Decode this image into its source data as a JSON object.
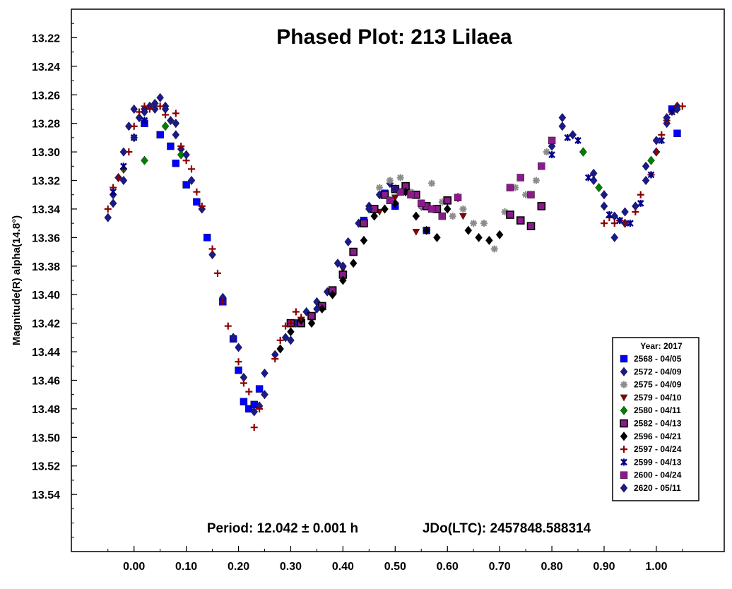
{
  "chart_data": {
    "type": "scatter",
    "title": "Phased Plot: 213 Lilaea",
    "ylabel": "Magnitude(R) alpha(14.8°)",
    "xlabel": "",
    "xlim": [
      -0.12,
      1.13
    ],
    "ylim": [
      13.2,
      13.58
    ],
    "y_inverted": true,
    "x_ticks": [
      "0.00",
      "0.10",
      "0.20",
      "0.30",
      "0.40",
      "0.50",
      "0.60",
      "0.70",
      "0.80",
      "0.90",
      "1.00"
    ],
    "y_ticks": [
      "13.22",
      "13.24",
      "13.26",
      "13.28",
      "13.30",
      "13.32",
      "13.34",
      "13.36",
      "13.38",
      "13.40",
      "13.42",
      "13.44",
      "13.46",
      "13.48",
      "13.50",
      "13.52",
      "13.54"
    ],
    "footer": {
      "period": "Period: 12.042 ± 0.001 h",
      "epoch": "JDo(LTC): 2457848.588314"
    },
    "legend": {
      "title": "Year: 2017",
      "placement": "bottom-right"
    },
    "series": [
      {
        "name": "2568 - 04/05",
        "marker": "square",
        "color": "#0000ff",
        "x": [
          0.02,
          0.05,
          0.07,
          0.08,
          0.1,
          0.12,
          0.14,
          0.17,
          0.19,
          0.2,
          0.21,
          0.22,
          0.23,
          0.24,
          0.44,
          0.48,
          0.5,
          0.56,
          1.03,
          1.04
        ],
        "y": [
          13.28,
          13.288,
          13.296,
          13.308,
          13.323,
          13.335,
          13.36,
          13.405,
          13.431,
          13.453,
          13.475,
          13.48,
          13.477,
          13.466,
          13.348,
          13.329,
          13.338,
          13.355,
          13.27,
          13.287
        ]
      },
      {
        "name": "2572 - 04/09",
        "marker": "diamond",
        "color": "#1a1a8c",
        "x": [
          -0.05,
          -0.04,
          -0.03,
          -0.02,
          -0.01,
          0.0,
          0.01,
          0.02,
          0.03,
          0.04,
          0.05,
          0.06,
          0.07,
          0.08,
          0.09,
          0.11,
          0.13,
          0.15,
          0.17,
          0.19,
          0.2,
          0.21,
          0.23,
          0.24,
          0.25,
          0.27,
          0.29,
          0.31,
          0.33,
          0.35,
          0.37,
          0.39,
          0.41,
          0.43,
          0.45,
          0.47,
          0.49,
          0.52,
          0.55,
          0.8,
          0.82,
          0.84,
          0.86,
          0.88,
          0.9,
          0.92,
          0.94,
          0.96,
          0.98,
          1.0,
          1.02,
          1.04
        ],
        "y": [
          13.346,
          13.33,
          13.318,
          13.3,
          13.282,
          13.27,
          13.276,
          13.27,
          13.268,
          13.27,
          13.262,
          13.268,
          13.278,
          13.288,
          13.298,
          13.32,
          13.34,
          13.372,
          13.402,
          13.43,
          13.437,
          13.458,
          13.482,
          13.478,
          13.455,
          13.442,
          13.43,
          13.42,
          13.412,
          13.405,
          13.398,
          13.378,
          13.363,
          13.35,
          13.338,
          13.33,
          13.322,
          13.325,
          13.338,
          13.296,
          13.276,
          13.288,
          13.3,
          13.32,
          13.338,
          13.36,
          13.35,
          13.338,
          13.32,
          13.3,
          13.28,
          13.268
        ]
      },
      {
        "name": "2575 - 04/09",
        "marker": "asterisk",
        "color": "#8c8c8c",
        "x": [
          0.47,
          0.49,
          0.51,
          0.53,
          0.55,
          0.57,
          0.59,
          0.61,
          0.63,
          0.65,
          0.67,
          0.69,
          0.71,
          0.73,
          0.75,
          0.77,
          0.79
        ],
        "y": [
          13.325,
          13.32,
          13.318,
          13.328,
          13.338,
          13.322,
          13.335,
          13.345,
          13.34,
          13.35,
          13.35,
          13.368,
          13.342,
          13.325,
          13.33,
          13.32,
          13.3
        ]
      },
      {
        "name": "2579 - 04/10",
        "marker": "triangle-down",
        "color": "#8b0000",
        "x": [
          0.32,
          0.36,
          0.4,
          0.47,
          0.5,
          0.54,
          0.6,
          0.63
        ],
        "y": [
          13.418,
          13.408,
          13.382,
          13.342,
          13.332,
          13.356,
          13.335,
          13.345
        ]
      },
      {
        "name": "2580 - 04/11",
        "marker": "diamond",
        "color": "#008000",
        "x": [
          -0.02,
          0.02,
          0.06,
          0.09,
          0.86,
          0.89,
          0.99
        ],
        "y": [
          13.312,
          13.306,
          13.282,
          13.302,
          13.3,
          13.325,
          13.306
        ]
      },
      {
        "name": "2582 - 04/13",
        "marker": "square-bordered",
        "color": "#8b1a8b",
        "x": [
          0.3,
          0.32,
          0.34,
          0.36,
          0.38,
          0.4,
          0.42,
          0.44,
          0.46,
          0.48,
          0.5,
          0.52,
          0.54,
          0.56,
          0.58,
          0.6,
          0.72,
          0.74,
          0.76,
          0.78
        ],
        "y": [
          13.42,
          13.42,
          13.415,
          13.408,
          13.397,
          13.386,
          13.37,
          13.35,
          13.34,
          13.33,
          13.326,
          13.324,
          13.33,
          13.338,
          13.34,
          13.334,
          13.344,
          13.348,
          13.352,
          13.338
        ]
      },
      {
        "name": "2596 - 04/21",
        "marker": "diamond",
        "color": "#000000",
        "x": [
          0.28,
          0.3,
          0.32,
          0.34,
          0.36,
          0.38,
          0.4,
          0.42,
          0.44,
          0.46,
          0.48,
          0.5,
          0.52,
          0.54,
          0.56,
          0.58,
          0.6,
          0.62,
          0.64,
          0.66,
          0.68,
          0.7
        ],
        "y": [
          13.438,
          13.426,
          13.418,
          13.42,
          13.41,
          13.4,
          13.39,
          13.378,
          13.362,
          13.345,
          13.34,
          13.336,
          13.328,
          13.345,
          13.355,
          13.36,
          13.34,
          13.332,
          13.355,
          13.36,
          13.362,
          13.358
        ]
      },
      {
        "name": "2597 - 04/24",
        "marker": "plus",
        "color": "#8b0000",
        "x": [
          -0.05,
          -0.04,
          -0.03,
          -0.02,
          -0.01,
          0.0,
          0.01,
          0.02,
          0.03,
          0.05,
          0.06,
          0.08,
          0.09,
          0.1,
          0.11,
          0.12,
          0.13,
          0.15,
          0.16,
          0.17,
          0.18,
          0.2,
          0.21,
          0.22,
          0.23,
          0.24,
          0.25,
          0.27,
          0.28,
          0.29,
          0.3,
          0.31,
          0.32,
          0.9,
          0.91,
          0.92,
          0.93,
          0.94,
          0.96,
          0.97,
          0.99,
          1.0,
          1.01,
          1.02,
          1.03,
          1.04,
          1.05
        ],
        "y": [
          13.34,
          13.325,
          13.318,
          13.312,
          13.3,
          13.282,
          13.272,
          13.268,
          13.27,
          13.268,
          13.274,
          13.273,
          13.296,
          13.306,
          13.312,
          13.328,
          13.338,
          13.368,
          13.385,
          13.405,
          13.422,
          13.447,
          13.462,
          13.468,
          13.493,
          13.48,
          13.47,
          13.445,
          13.432,
          13.422,
          13.42,
          13.412,
          13.416,
          13.35,
          13.346,
          13.35,
          13.348,
          13.35,
          13.342,
          13.33,
          13.316,
          13.3,
          13.288,
          13.278,
          13.272,
          13.268,
          13.268
        ]
      },
      {
        "name": "2599 - 04/13",
        "marker": "star",
        "color": "#00008b",
        "x": [
          -0.04,
          -0.02,
          0.0,
          0.02,
          0.8,
          0.83,
          0.85,
          0.87,
          0.91,
          0.93,
          0.95,
          0.97,
          0.99,
          1.01,
          1.03
        ],
        "y": [
          13.328,
          13.31,
          13.29,
          13.278,
          13.302,
          13.29,
          13.292,
          13.318,
          13.344,
          13.348,
          13.35,
          13.336,
          13.316,
          13.292,
          13.272
        ]
      },
      {
        "name": "2600 - 04/24",
        "marker": "square",
        "color": "#8b1a8b",
        "x": [
          0.49,
          0.51,
          0.53,
          0.55,
          0.57,
          0.59,
          0.62,
          0.72,
          0.74,
          0.76,
          0.78,
          0.8
        ],
        "y": [
          13.334,
          13.328,
          13.33,
          13.336,
          13.34,
          13.345,
          13.332,
          13.325,
          13.318,
          13.33,
          13.31,
          13.292
        ]
      },
      {
        "name": "2620 - 05/11",
        "marker": "diamond",
        "color": "#1a1a8c",
        "x": [
          -0.04,
          -0.02,
          0.0,
          0.02,
          0.04,
          0.06,
          0.08,
          0.1,
          0.25,
          0.3,
          0.35,
          0.4,
          0.45,
          0.5,
          0.82,
          0.84,
          0.88,
          0.9,
          0.92,
          0.94,
          0.98,
          1.0,
          1.02,
          1.04
        ],
        "y": [
          13.336,
          13.32,
          13.29,
          13.272,
          13.266,
          13.27,
          13.28,
          13.302,
          13.47,
          13.432,
          13.41,
          13.38,
          13.34,
          13.326,
          13.282,
          13.288,
          13.315,
          13.33,
          13.345,
          13.342,
          13.31,
          13.292,
          13.276,
          13.27
        ]
      }
    ]
  }
}
